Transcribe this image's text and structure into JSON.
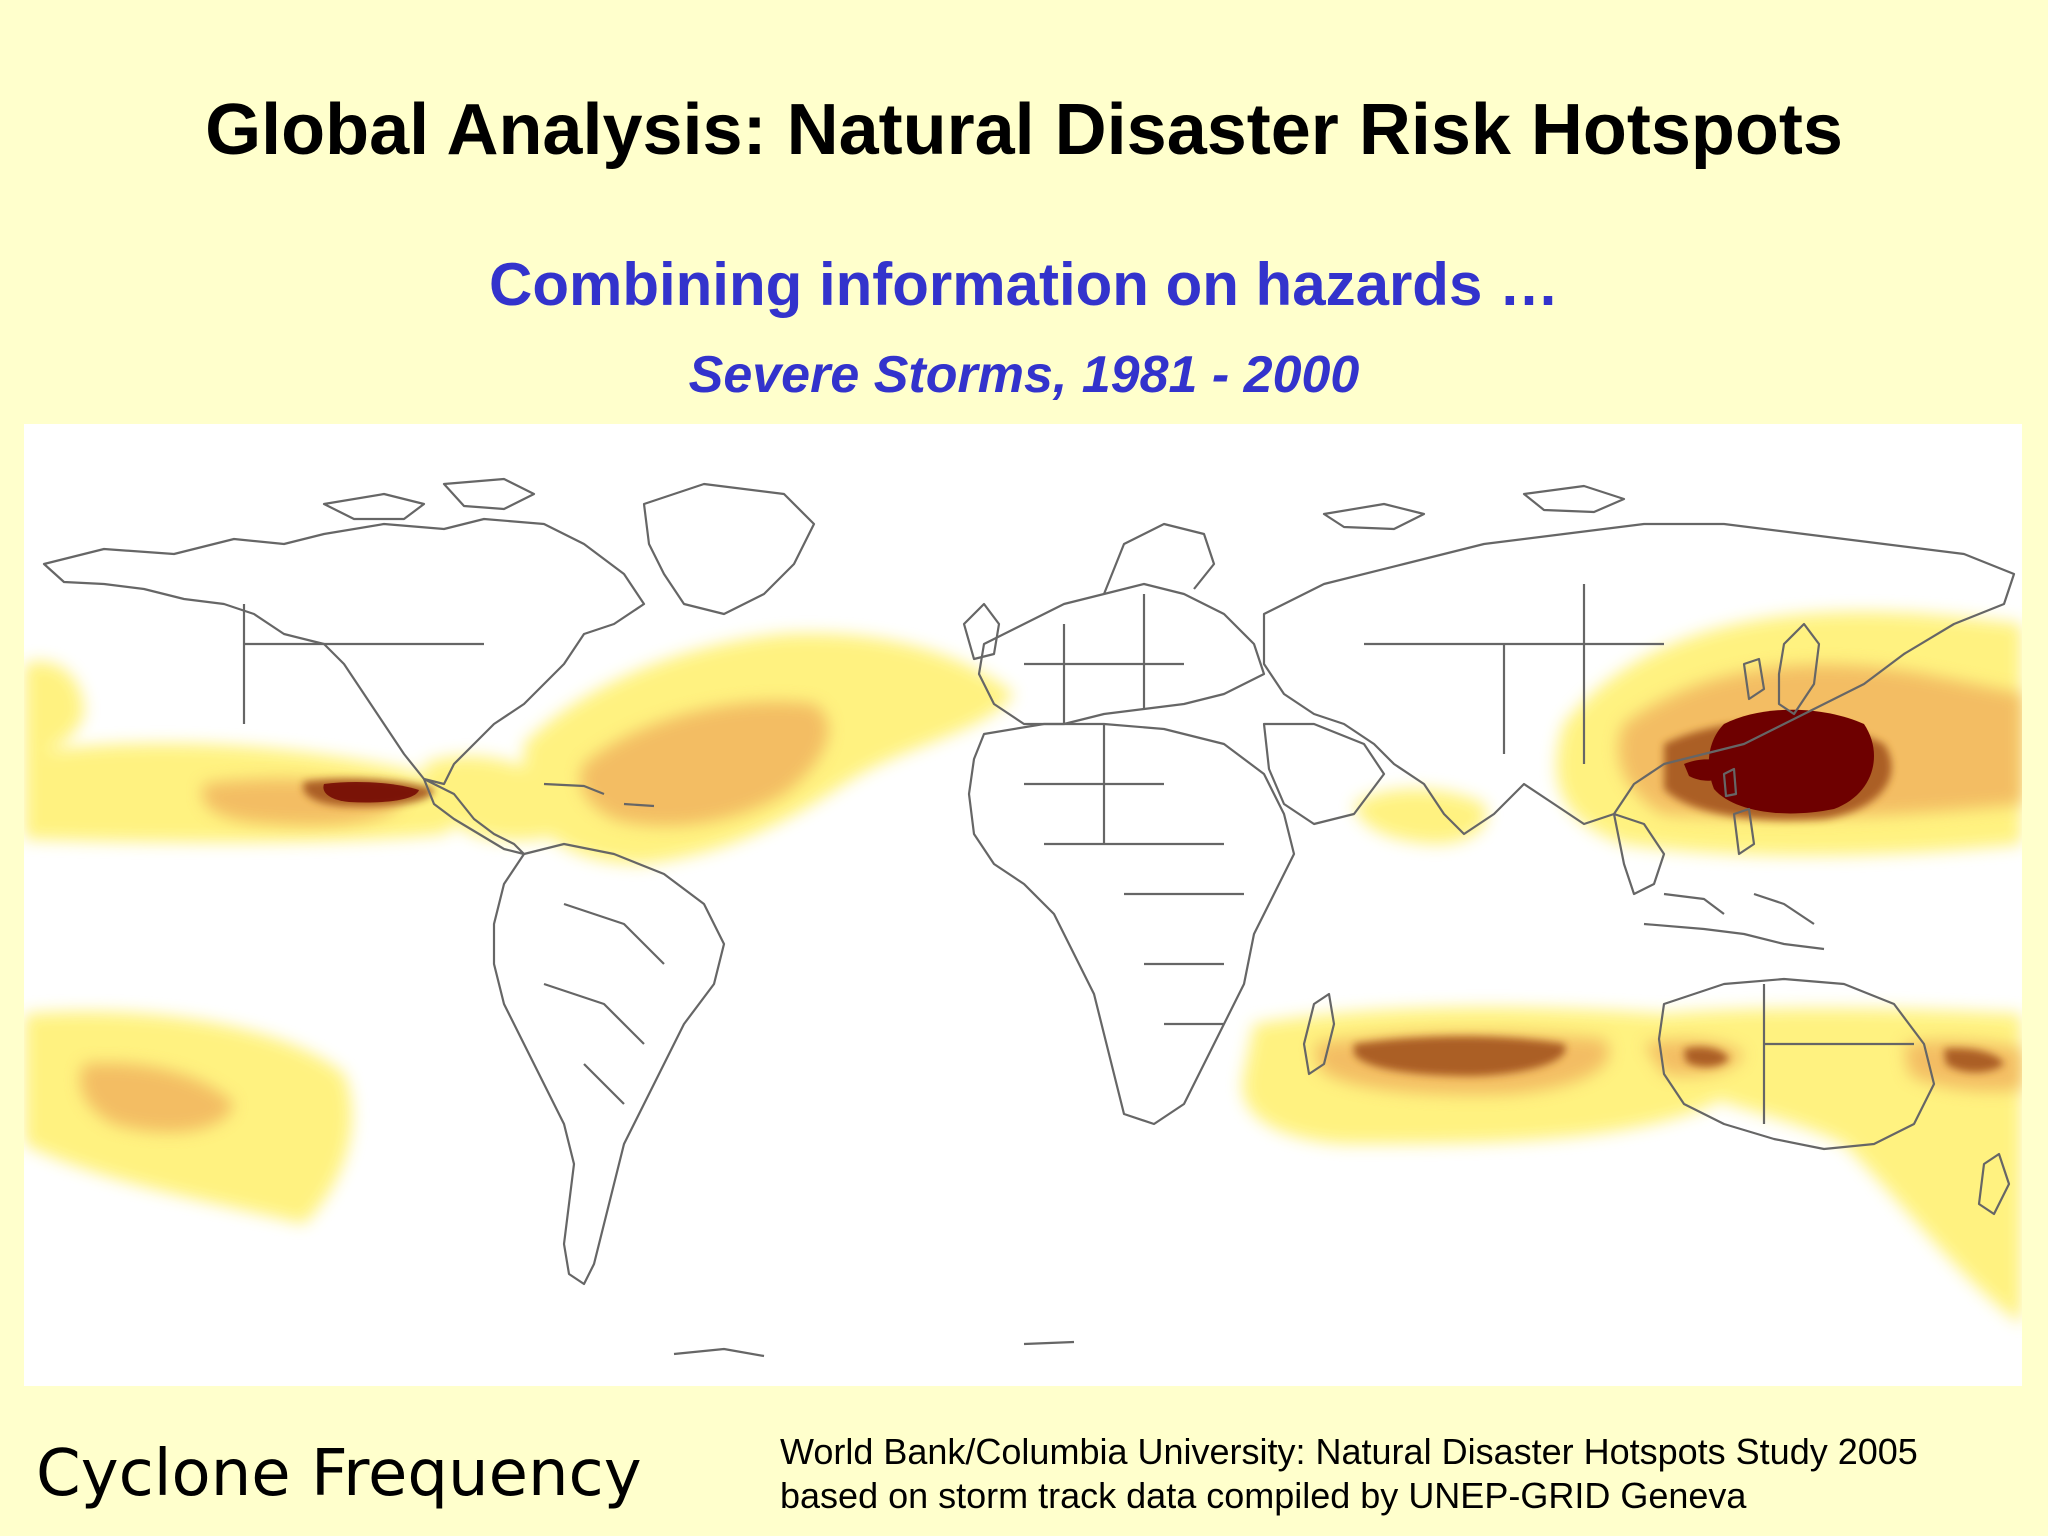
{
  "header": {
    "title": "Global Analysis: Natural Disaster Risk Hotspots",
    "subtitle": "Combining information on hazards …",
    "subtitle_detail": "Severe Storms, 1981 - 2000"
  },
  "map": {
    "layer": "Cyclone Frequency",
    "colors": {
      "background": "#ffffcc",
      "map_background": "#ffffff",
      "country_borders": "#666666",
      "low_frequency": "#fff27a",
      "medium_frequency": "#f2c266",
      "high_frequency": "#b06024",
      "very_high_frequency": "#6e0000"
    }
  },
  "footer": {
    "legend_label": "Cyclone Frequency",
    "credit_line1": "World Bank/Columbia University: Natural Disaster Hotspots Study 2005",
    "credit_line2": "based on storm track data compiled by UNEP-GRID Geneva"
  }
}
